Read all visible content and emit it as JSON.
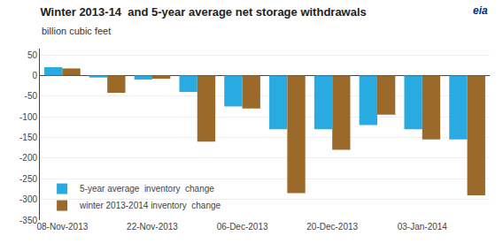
{
  "chart_data": {
    "type": "bar",
    "title": "Winter 2013-14  and 5-year average net storage withdrawals",
    "subtitle": "billion cubic feet",
    "categories": [
      "08-Nov-2013",
      null,
      "22-Nov-2013",
      null,
      "06-Dec-2013",
      null,
      "20-Dec-2013",
      null,
      "03-Jan-2014",
      null
    ],
    "series": [
      {
        "name": "5-year average  inventory  change",
        "color": "#29ABE2",
        "values": [
          20,
          -5,
          -10,
          -40,
          -75,
          -130,
          -130,
          -120,
          -130,
          -155
        ]
      },
      {
        "name": "winter 2013-2014 inventory  change",
        "color": "#9B6A2A",
        "values": [
          17,
          -42,
          -8,
          -160,
          -80,
          -285,
          -180,
          -95,
          -155,
          -290
        ]
      }
    ],
    "ylim": [
      -350,
      65
    ],
    "yticks": [
      -350,
      -300,
      -250,
      -200,
      -150,
      -100,
      -50,
      0,
      50
    ],
    "grid": true,
    "legend": "lower left",
    "annotations": [
      {
        "text": "eia"
      }
    ]
  }
}
